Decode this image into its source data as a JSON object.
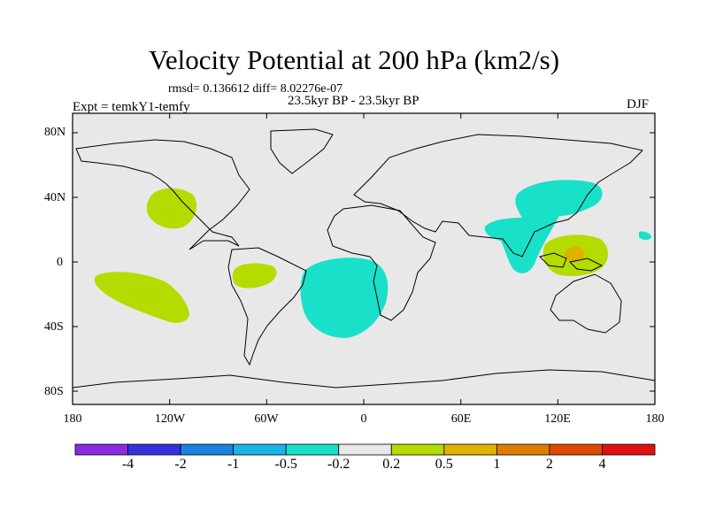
{
  "title": "Velocity Potential at 200 hPa (km2/s)",
  "stats": "rmsd= 0.136612 diff= 8.02276e-07",
  "period": "23.5kyr BP - 23.5kyr BP",
  "experiment": "Expt = temkY1-temfy",
  "season": "DJF",
  "lat_labels": [
    "80N",
    "40N",
    "0",
    "40S",
    "80S"
  ],
  "lon_labels": [
    "180",
    "120W",
    "60W",
    "0",
    "60E",
    "120E",
    "180"
  ],
  "colorbar": {
    "colors": [
      "#8a2be2",
      "#3333dd",
      "#1a82e0",
      "#18b4e8",
      "#19e0c8",
      "#e8e8e8",
      "#b4dc00",
      "#e0b200",
      "#e07d00",
      "#e04a00",
      "#e01010"
    ],
    "labels": [
      "-4",
      "-2",
      "-1",
      "-0.5",
      "-0.2",
      "0.2",
      "0.5",
      "1",
      "2",
      "4"
    ]
  },
  "colors": {
    "ocean_background": "#e8e8e8",
    "negative_anomaly": "#19e0c8",
    "positive_anomaly": "#b4dc00",
    "strong_positive": "#e0b200"
  }
}
